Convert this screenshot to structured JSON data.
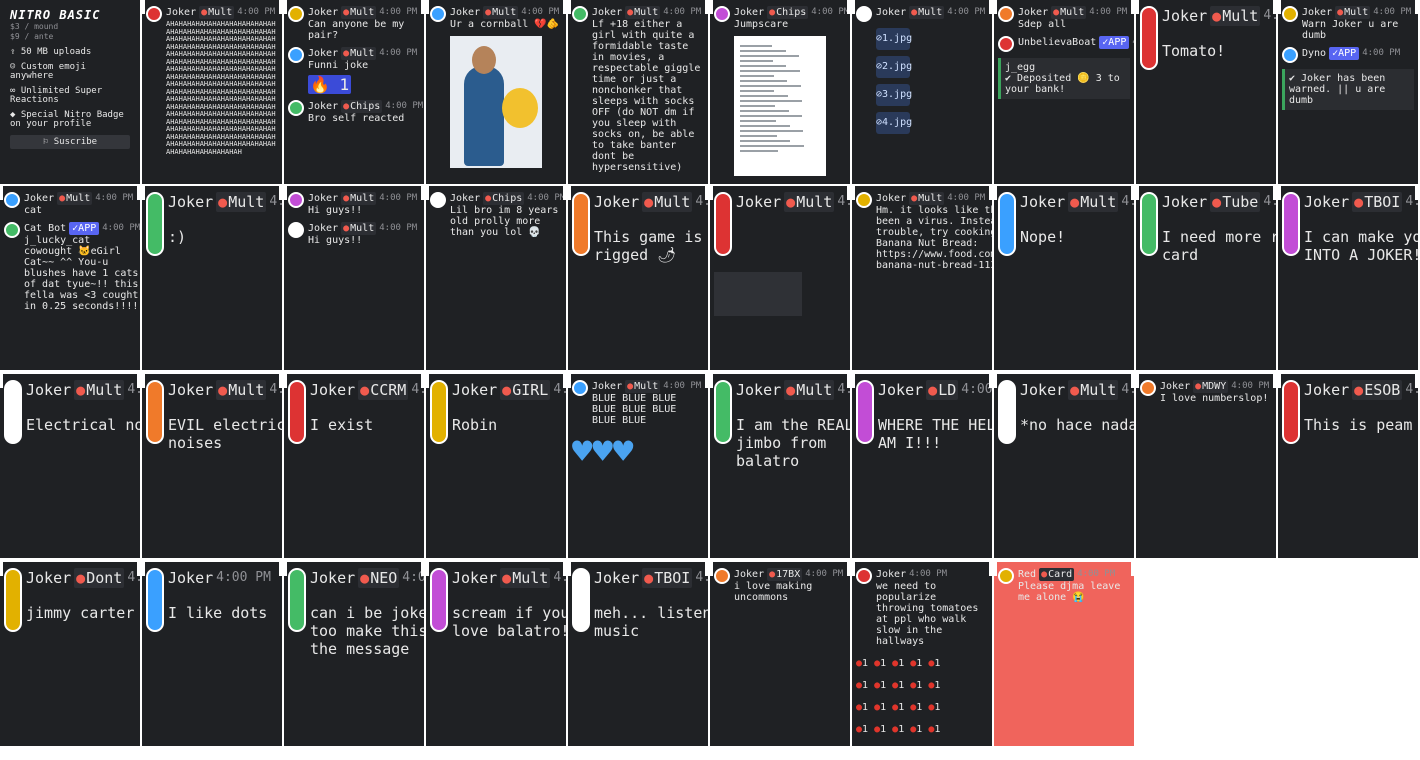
{
  "shop": {
    "title": "NITRO BASIC",
    "price_month": "$3 / mound",
    "price_year": "$9 / ante",
    "perks": [
      "50 MB uploads",
      "Custom emoji anywhere",
      "Unlimited Super Reactions",
      "Special Nitro Badge on your profile"
    ],
    "subscribe_label": "Suscribe"
  },
  "time": "4:00 PM",
  "cards": [
    {
      "id": "c1",
      "messages": [
        {
          "name": "Joker",
          "tag": "Mult",
          "text": "AHAHAHAHAHAHAHAHAHAHAHAHAHAHAHAHAHAHAHAHAHAHAHAHAHAHAHAHAHAHAHAHAHAHAHAHAHAHAHAHAHAHAHAHAHAHAHAHAHAHAHAHAHAHAHAHAHAHAHAHAHAHAHAHAHAHAHAHAHAHAHAHAHAHAHAHAHAHAHAHAHAHAHAHAHAHAHAHAHAHAHAHAHAHAHAHAHAHAHAHAHAHAHAHAHAHAHAHAHAHAHAHAHAHAHAHAHAHAHAHAHAHAHAHAHAHAHAHAHAHAHAHAHAHAHAHAHAHAHAHAHAHAHAHAHAHAHAHAHAHAHAHAHAHAHAHAHAHAHAHAHAHAHAHAHAHAHAHAHAHAHAHAHAHAHAHAHAHAHAHAHAHAHAHAHAHAHAHAHAHAHAHAHAHAHAHAHAHAHAHAHAHAHAHAHAHAHAHAHAHAHAHAHAHAHAHAHAHAHAHAHAHAHAHAHAHAHAHAHAH"
        }
      ]
    },
    {
      "id": "c2",
      "messages": [
        {
          "name": "Joker",
          "tag": "Mult",
          "text": "Can anyone be my pair?"
        },
        {
          "name": "Joker",
          "tag": "Mult",
          "text": "Funni joke",
          "reaction": "1"
        },
        {
          "name": "Joker",
          "tag": "Chips",
          "text": "Bro self reacted"
        }
      ]
    },
    {
      "id": "c3",
      "messages": [
        {
          "name": "Joker",
          "tag": "Mult",
          "text": "Ur a cornball 💔🫵"
        }
      ]
    },
    {
      "id": "c4",
      "messages": [
        {
          "name": "Joker",
          "tag": "Mult",
          "text": "Lf +18 either a girl with quite a formidable taste in movies, a respectable giggle time or just a nonchonker that sleeps with socks OFF (do NOT dm if you sleep with socks on, be able to take banter dont be hypersensitive)"
        }
      ]
    },
    {
      "id": "c5",
      "messages": [
        {
          "name": "Joker",
          "tag": "Chips",
          "text": "Jumpscare"
        }
      ]
    },
    {
      "id": "c6",
      "messages": [
        {
          "name": "Joker",
          "tag": "Mult",
          "text": ""
        }
      ],
      "files": [
        "1.jpg",
        "2.jpg",
        "3.jpg",
        "4.jpg"
      ]
    },
    {
      "id": "c7",
      "messages": [
        {
          "name": "Joker",
          "tag": "Mult",
          "text": "Sdep all"
        },
        {
          "name": "UnbelievaBoat",
          "tag": "APP",
          "text": ""
        }
      ],
      "embed": {
        "user": "j_egg",
        "line": "Deposited 🪙 3 to your bank!"
      }
    },
    {
      "id": "c8",
      "messages": [
        {
          "name": "Joker",
          "tag": "Mult",
          "text": "Tomato!"
        }
      ]
    },
    {
      "id": "c9",
      "messages": [
        {
          "name": "Joker",
          "tag": "Mult",
          "text": "Warn Joker u are dumb"
        },
        {
          "name": "Dyno",
          "tag": "APP",
          "text": ""
        }
      ],
      "embed": {
        "user": "",
        "line": "Joker has been warned. || u are dumb"
      }
    },
    {
      "id": "c10",
      "messages": [
        {
          "name": "Joker",
          "tag": "Mult",
          "text": "cat"
        },
        {
          "name": "Cat Bot",
          "tag": "APP",
          "text": "j_lucky_cat cowought 🐱eGirl Cat~~ ^^ You-u blushes have 1 cats of dat tyue~!! this fella was <3 cought in 0.25 seconds!!!!"
        }
      ]
    },
    {
      "id": "c11",
      "messages": [
        {
          "name": "Joker",
          "tag": "Mult",
          "text": ":)"
        }
      ]
    },
    {
      "id": "c12",
      "messages": [
        {
          "name": "Joker",
          "tag": "Mult",
          "text": "Hi guys!!"
        },
        {
          "name": "Joker",
          "tag": "Mult",
          "text": "Hi guys!!"
        }
      ]
    },
    {
      "id": "c13",
      "messages": [
        {
          "name": "Joker",
          "tag": "Chips",
          "text": "Lil bro im 8 years old prolly more than you lol 💀"
        }
      ]
    },
    {
      "id": "c14",
      "messages": [
        {
          "name": "Joker",
          "tag": "Mult",
          "text": "This game is rigged 🌶"
        }
      ]
    },
    {
      "id": "c15",
      "messages": [
        {
          "name": "Joker",
          "tag": "Mult",
          "text": ""
        }
      ]
    },
    {
      "id": "c16",
      "messages": [
        {
          "name": "Joker",
          "tag": "Mult",
          "text": "Hm. it looks like that file might've been a virus. Instead of cooking up trouble, try cooking up Hawaiian Banana Nut Bread: https://www.food.com/recipe/hawaiian-banana-nut-bread-113608 (Edited)"
        }
      ]
    },
    {
      "id": "c17",
      "messages": [
        {
          "name": "Joker",
          "tag": "Mult",
          "text": "Nope!"
        }
      ]
    },
    {
      "id": "c18",
      "messages": [
        {
          "name": "Joker",
          "tag": "Tube",
          "text": "I need more red card"
        }
      ]
    },
    {
      "id": "c19",
      "messages": [
        {
          "name": "Joker",
          "tag": "TBOI",
          "text": "I can make you... INTO A JOKER!!"
        }
      ]
    },
    {
      "id": "c20",
      "messages": [
        {
          "name": "Joker",
          "tag": "Mult",
          "text": "Electrical noises"
        }
      ]
    },
    {
      "id": "c21",
      "messages": [
        {
          "name": "Joker",
          "tag": "Mult",
          "text": "EVIL electrical noises"
        }
      ]
    },
    {
      "id": "c22",
      "messages": [
        {
          "name": "Joker",
          "tag": "CCRM",
          "text": "I exist"
        }
      ]
    },
    {
      "id": "c23",
      "messages": [
        {
          "name": "Joker",
          "tag": "GIRL",
          "text": "Robin"
        }
      ]
    },
    {
      "id": "c24",
      "messages": [
        {
          "name": "Joker",
          "tag": "Mult",
          "text": "BLUE BLUE BLUE BLUE BLUE BLUE BLUE BLUE"
        }
      ]
    },
    {
      "id": "c25",
      "messages": [
        {
          "name": "Joker",
          "tag": "Mult",
          "text": "I am the REAL jimbo from balatro"
        }
      ]
    },
    {
      "id": "c26",
      "messages": [
        {
          "name": "Joker",
          "tag": "LD",
          "text": "WHERE THE HELL AM I!!!"
        }
      ]
    },
    {
      "id": "c27",
      "messages": [
        {
          "name": "Joker",
          "tag": "Mult",
          "text": "*no hace nada*"
        }
      ]
    },
    {
      "id": "c28",
      "messages": [
        {
          "name": "Joker",
          "tag": "MDWY",
          "text": "I love numberslop!"
        }
      ]
    },
    {
      "id": "c29",
      "messages": [
        {
          "name": "Joker",
          "tag": "ESOB",
          "text": "This is peam 🔥"
        }
      ]
    },
    {
      "id": "c30",
      "messages": [
        {
          "name": "Joker",
          "tag": "Dont",
          "text": "jimmy carter"
        }
      ]
    },
    {
      "id": "c31",
      "messages": [
        {
          "name": "Joker",
          "tag": "",
          "text": "I like dots"
        }
      ]
    },
    {
      "id": "c32",
      "messages": [
        {
          "name": "Joker",
          "tag": "NEO",
          "text": "can i be jokered too make this the message"
        }
      ]
    },
    {
      "id": "c33",
      "messages": [
        {
          "name": "Joker",
          "tag": "Mult",
          "text": "scream if you love balatro!!"
        }
      ]
    },
    {
      "id": "c34",
      "messages": [
        {
          "name": "Joker",
          "tag": "TBOI",
          "text": "meh... listens to music"
        }
      ]
    },
    {
      "id": "c35",
      "messages": [
        {
          "name": "Joker",
          "tag": "17BX",
          "text": "i love making uncommons"
        }
      ]
    },
    {
      "id": "c36",
      "messages": [
        {
          "name": "Joker",
          "tag": "",
          "text": "we need to popularize throwing tomatoes at ppl who walk slow in the hallways"
        }
      ],
      "tomato_count": "1"
    },
    {
      "id": "c37",
      "messages": [
        {
          "name": "Red",
          "tag": "Card",
          "text": "Please djma leave me alone 😭"
        }
      ]
    }
  ]
}
